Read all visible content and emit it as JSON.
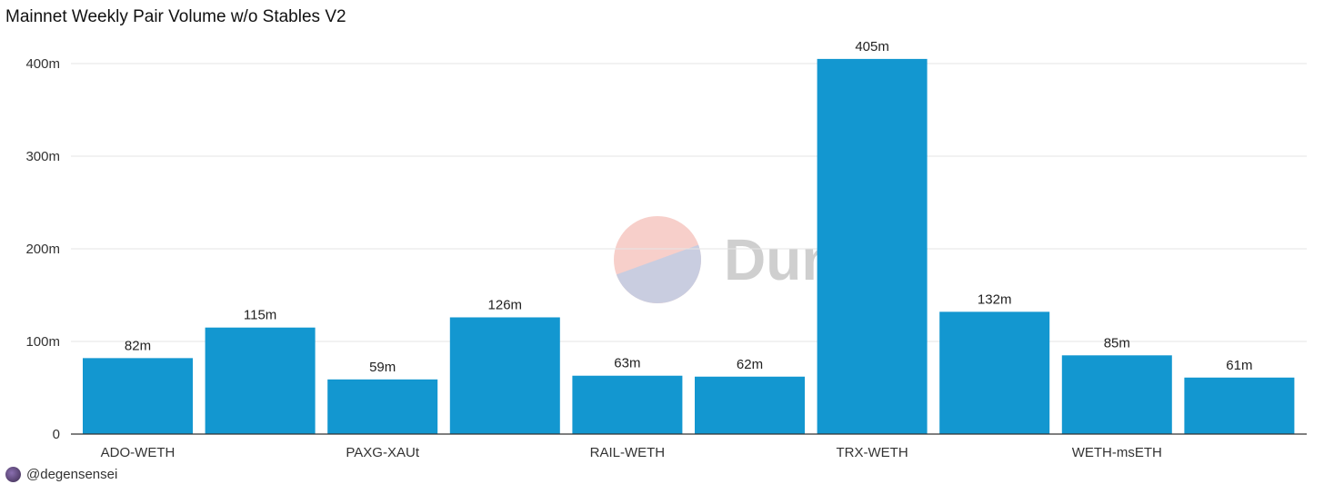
{
  "title": "Mainnet Weekly Pair Volume w/o Stables V2",
  "footer": {
    "handle": "@degensensei"
  },
  "watermark": {
    "text": "Dune",
    "color_top": "#f7cfca",
    "color_bottom": "#c9cde0"
  },
  "colors": {
    "bar": "#1397d0",
    "grid": "#e5e5e5",
    "axis": "#333333"
  },
  "chart_data": {
    "type": "bar",
    "categories": [
      "ADO-WETH",
      "",
      "PAXG-XAUt",
      "",
      "RAIL-WETH",
      "",
      "TRX-WETH",
      "",
      "WETH-msETH",
      ""
    ],
    "values": [
      82,
      115,
      59,
      126,
      63,
      62,
      405,
      132,
      85,
      61
    ],
    "data_labels": [
      "82m",
      "115m",
      "59m",
      "126m",
      "63m",
      "62m",
      "405m",
      "132m",
      "85m",
      "61m"
    ],
    "title": "Mainnet Weekly Pair Volume w/o Stables V2",
    "xlabel": "",
    "ylabel": "",
    "ylim": [
      0,
      400
    ],
    "yticks": [
      0,
      100,
      200,
      300,
      400
    ],
    "ytick_labels": [
      "0",
      "100m",
      "200m",
      "300m",
      "400m"
    ],
    "grid": true,
    "legend": "none"
  }
}
